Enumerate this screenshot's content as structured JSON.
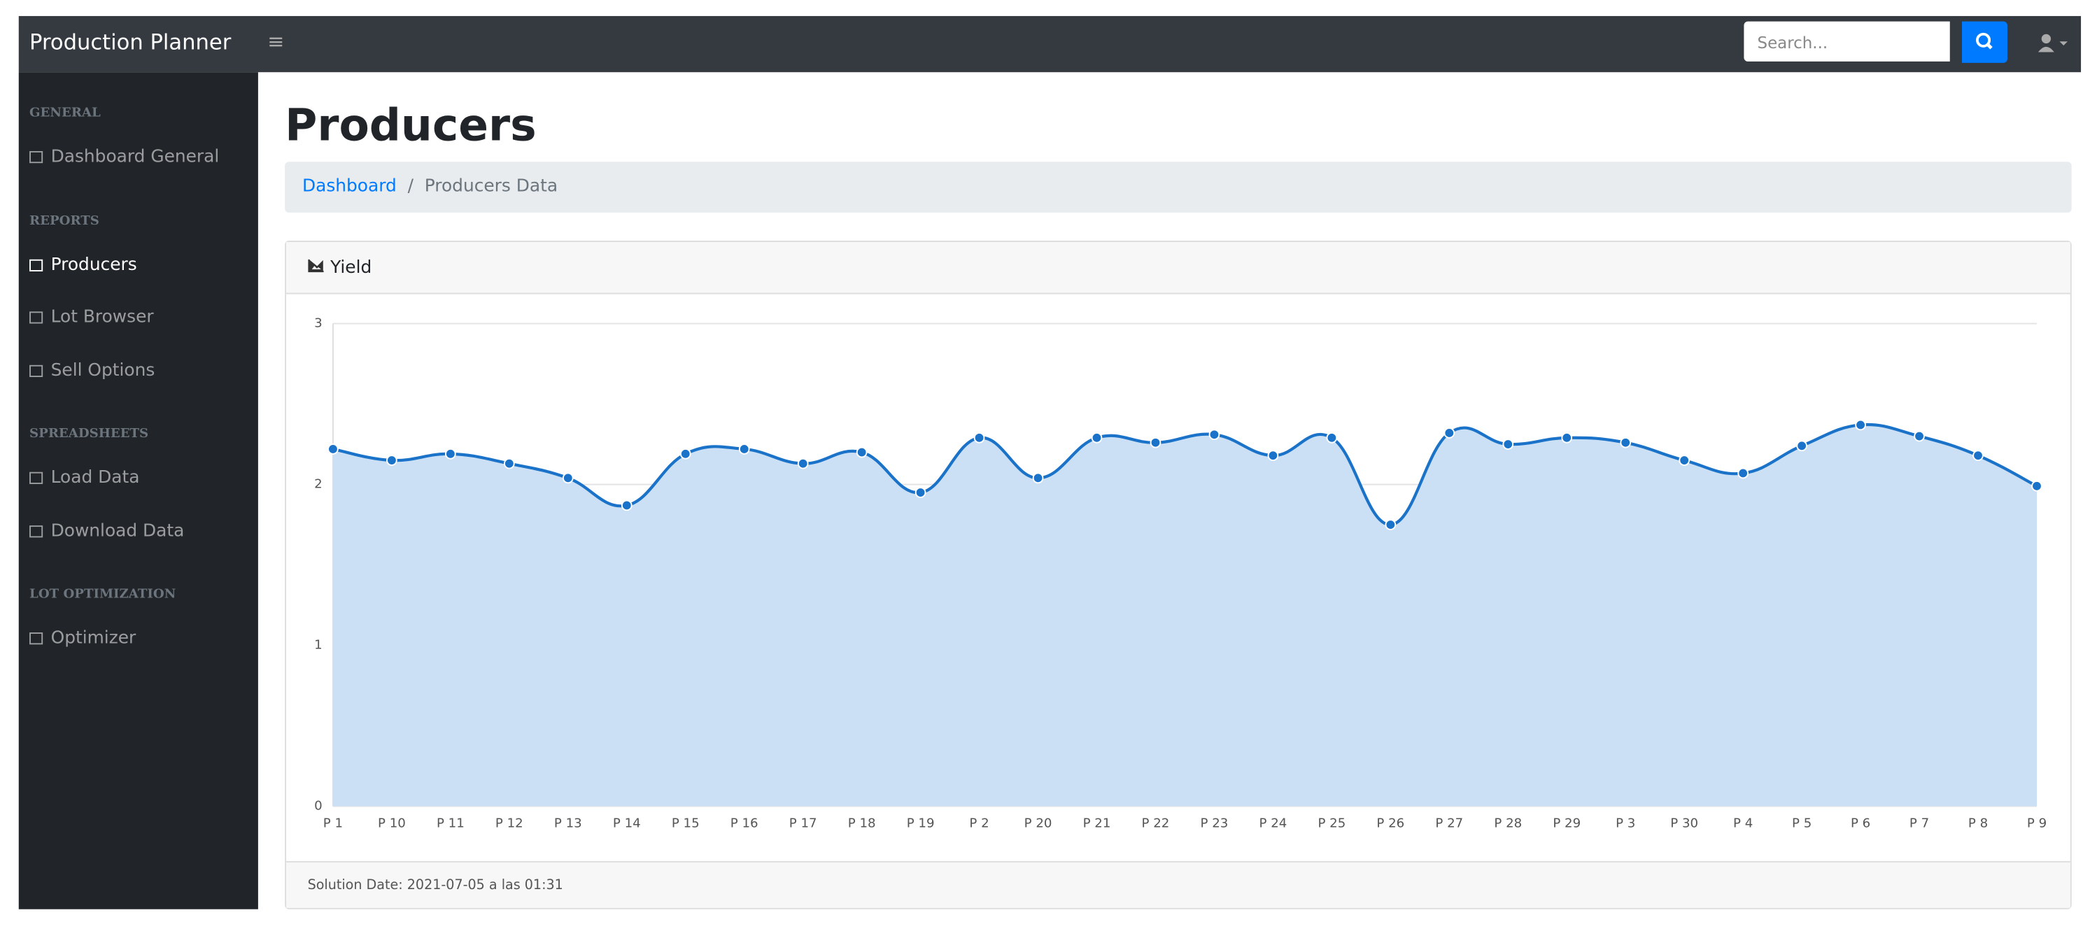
{
  "navbar": {
    "brand": "Production Planner",
    "search_placeholder": "Search..."
  },
  "sidebar": {
    "sections": [
      {
        "heading": "GENERAL",
        "items": [
          "Dashboard General"
        ]
      },
      {
        "heading": "REPORTS",
        "items": [
          "Producers",
          "Lot Browser",
          "Sell Options"
        ]
      },
      {
        "heading": "SPREADSHEETS",
        "items": [
          "Load Data",
          "Download Data"
        ]
      },
      {
        "heading": "LOT OPTIMIZATION",
        "items": [
          "Optimizer"
        ]
      }
    ]
  },
  "page": {
    "title": "Producers",
    "breadcrumb": [
      "Dashboard",
      "Producers Data"
    ],
    "card_title": "Yield",
    "footer": "Solution Date: 2021-07-05 a las 01:31"
  },
  "chart_data": {
    "type": "area",
    "categories": [
      "P 1",
      "P 10",
      "P 11",
      "P 12",
      "P 13",
      "P 14",
      "P 15",
      "P 16",
      "P 17",
      "P 18",
      "P 19",
      "P 2",
      "P 20",
      "P 21",
      "P 22",
      "P 23",
      "P 24",
      "P 25",
      "P 26",
      "P 27",
      "P 28",
      "P 29",
      "P 3",
      "P 30",
      "P 4",
      "P 5",
      "P 6",
      "P 7",
      "P 8",
      "P 9"
    ],
    "series": [
      {
        "name": "Yield",
        "color": "#1a73c9",
        "values": [
          2.22,
          2.15,
          2.19,
          2.13,
          2.04,
          1.87,
          2.19,
          2.22,
          2.13,
          2.2,
          1.95,
          2.29,
          2.04,
          2.29,
          2.26,
          2.31,
          2.18,
          2.29,
          1.75,
          2.32,
          2.25,
          2.29,
          2.26,
          2.15,
          2.07,
          2.24,
          2.37,
          2.3,
          2.18,
          1.99
        ]
      }
    ],
    "area_color": "#cbe0f5",
    "ylim": [
      0,
      3
    ],
    "yticks": [
      0,
      1,
      2,
      3
    ],
    "grid": true
  }
}
